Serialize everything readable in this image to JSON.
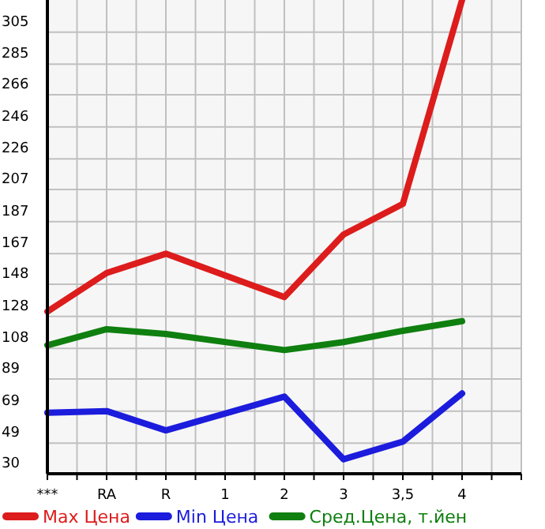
{
  "chart_data": {
    "type": "line",
    "categories": [
      "***",
      "RA",
      "R",
      "1",
      "2",
      "3",
      "3,5",
      "4"
    ],
    "ylim": [
      30,
      325
    ],
    "yticks": [
      30,
      49,
      69,
      89,
      108,
      128,
      148,
      167,
      187,
      207,
      226,
      246,
      266,
      285,
      305
    ],
    "grid": true,
    "legend": "bottom",
    "marker": "none",
    "series": [
      {
        "name": "Max Цена",
        "color": "#dd1c1c",
        "values": [
          131,
          155,
          167,
          null,
          140,
          179,
          198,
          325
        ]
      },
      {
        "name": "Min Цена",
        "color": "#1c1cdd",
        "values": [
          68,
          69,
          57,
          null,
          78,
          39,
          50,
          80
        ]
      },
      {
        "name": "Сред.Цена, т.йен",
        "color": "#0f7f0f",
        "values": [
          110,
          120,
          117,
          null,
          107,
          112,
          119,
          125
        ]
      }
    ]
  }
}
